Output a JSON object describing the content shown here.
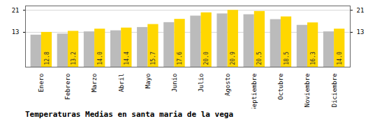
{
  "chart_data": {
    "type": "bar",
    "title": "Temperaturas Medias en santa maria de la vega",
    "categories": [
      "Enero",
      "Febrero",
      "Marzo",
      "Abril",
      "Mayo",
      "Junio",
      "Julio",
      "Agosto",
      "Septiembre",
      "Octubre",
      "Noviembre",
      "Diciembre"
    ],
    "series": [
      {
        "color": "#BBBBBB",
        "values": [
          11.8,
          12.2,
          13.0,
          13.4,
          14.6,
          16.4,
          18.8,
          19.6,
          19.3,
          17.5,
          15.4,
          13.0
        ]
      },
      {
        "color": "#FFD700",
        "values": [
          12.8,
          13.2,
          14.0,
          14.4,
          15.7,
          17.6,
          20.0,
          20.9,
          20.5,
          18.5,
          16.3,
          14.0
        ],
        "value_labels": [
          "12.8",
          "13.2",
          "14.0",
          "14.4",
          "15.7",
          "17.6",
          "20.0",
          "20.9",
          "20.5",
          "18.5",
          "16.3",
          "14.0"
        ],
        "data_labels": true
      }
    ],
    "ylim": [
      0,
      22.5
    ],
    "yticks": [
      12.8,
      20.9
    ],
    "y2lim": [
      0,
      22.5
    ],
    "y2ticks": [
      12.8,
      20.9
    ],
    "grid": true
  }
}
